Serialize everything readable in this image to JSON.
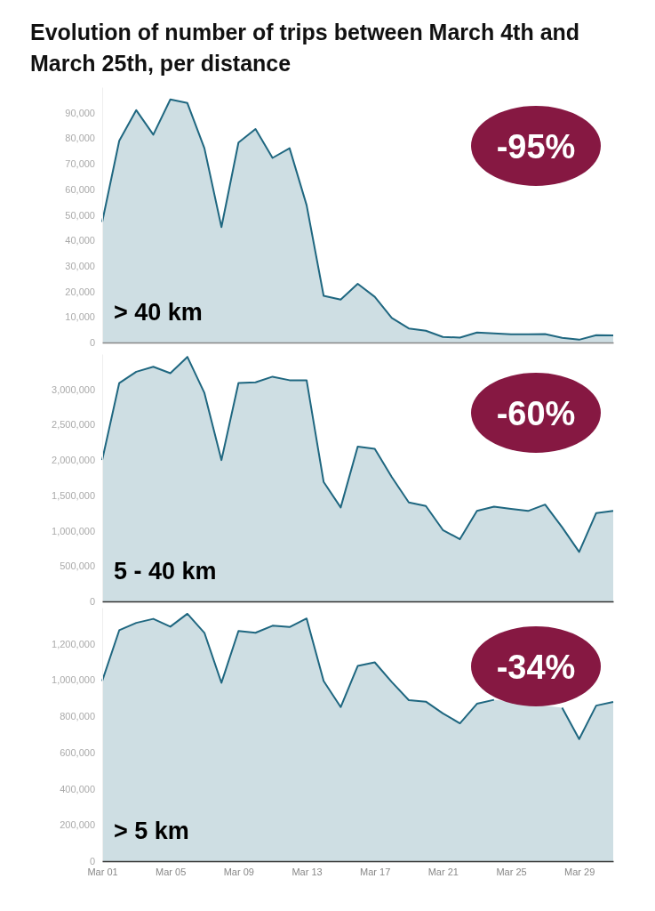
{
  "chart_data": [
    {
      "type": "area",
      "title": "Evolution of number of trips between March 4th and March 25th, per distance",
      "annotations": [
        "> 40 km",
        "-95%"
      ],
      "tick_labels": "y",
      "grid": false,
      "x": [
        "--03-01",
        "--03-02",
        "--03-03",
        "--03-04",
        "--03-05",
        "--03-06",
        "--03-07",
        "--03-08",
        "--03-09",
        "--03-10",
        "--03-11",
        "--03-12",
        "--03-13",
        "--03-14",
        "--03-15",
        "--03-16",
        "--03-17",
        "--03-18",
        "--03-19",
        "--03-20",
        "--03-21",
        "--03-22",
        "--03-23",
        "--03-24",
        "--03-25",
        "--03-26",
        "--03-27",
        "--03-28",
        "--03-29",
        "--03-30",
        "--03-31"
      ],
      "xlim": [
        "--03-01",
        "--03-31"
      ],
      "ylim": [
        0,
        100000
      ],
      "yticks": [
        {
          "value": 0,
          "label": "0"
        },
        {
          "value": 10000,
          "label": "10,000"
        },
        {
          "value": 20000,
          "label": "20,000"
        },
        {
          "value": 30000,
          "label": "30,000"
        },
        {
          "value": 40000,
          "label": "40,000"
        },
        {
          "value": 50000,
          "label": "50,000"
        },
        {
          "value": 60000,
          "label": "60,000"
        },
        {
          "value": 70000,
          "label": "70,000"
        },
        {
          "value": 80000,
          "label": "80,000"
        },
        {
          "value": 90000,
          "label": "90,000"
        }
      ],
      "series": [
        {
          "color": "#1f6780",
          "values": [
            47200,
            79000,
            91000,
            81400,
            95200,
            93800,
            76100,
            45200,
            78300,
            83600,
            72300,
            76100,
            53800,
            18300,
            16800,
            23000,
            17900,
            9600,
            5500,
            4600,
            2200,
            1900,
            3900,
            3600,
            3200,
            3200,
            3300,
            1800,
            1100,
            2900,
            2800
          ]
        }
      ]
    },
    {
      "type": "area",
      "annotations": [
        "5 - 40 km",
        "-60%"
      ],
      "tick_labels": "y",
      "grid": false,
      "x": [
        "--03-01",
        "--03-02",
        "--03-03",
        "--03-04",
        "--03-05",
        "--03-06",
        "--03-07",
        "--03-08",
        "--03-09",
        "--03-10",
        "--03-11",
        "--03-12",
        "--03-13",
        "--03-14",
        "--03-15",
        "--03-16",
        "--03-17",
        "--03-18",
        "--03-19",
        "--03-20",
        "--03-21",
        "--03-22",
        "--03-23",
        "--03-24",
        "--03-25",
        "--03-26",
        "--03-27",
        "--03-28",
        "--03-29",
        "--03-30",
        "--03-31"
      ],
      "xlim": [
        "--03-01",
        "--03-31"
      ],
      "ylim": [
        0,
        3500000
      ],
      "yticks": [
        {
          "value": 0,
          "label": "0"
        },
        {
          "value": 500000,
          "label": "500,000"
        },
        {
          "value": 1000000,
          "label": "1,000,000"
        },
        {
          "value": 1500000,
          "label": "1,500,000"
        },
        {
          "value": 2000000,
          "label": "2,000,000"
        },
        {
          "value": 2500000,
          "label": "2,500,000"
        },
        {
          "value": 3000000,
          "label": "3,000,000"
        }
      ],
      "series": [
        {
          "color": "#1f6780",
          "values": [
            2000000,
            3090000,
            3250000,
            3320000,
            3230000,
            3460000,
            2950000,
            2000000,
            3090000,
            3100000,
            3180000,
            3130000,
            3130000,
            1690000,
            1330000,
            2190000,
            2160000,
            1760000,
            1400000,
            1350000,
            1010000,
            880000,
            1280000,
            1340000,
            1310000,
            1280000,
            1370000,
            1050000,
            700000,
            1250000,
            1280000
          ]
        }
      ]
    },
    {
      "type": "area",
      "annotations": [
        "> 5 km",
        "-34%"
      ],
      "grid": false,
      "x": [
        "--03-01",
        "--03-02",
        "--03-03",
        "--03-04",
        "--03-05",
        "--03-06",
        "--03-07",
        "--03-08",
        "--03-09",
        "--03-10",
        "--03-11",
        "--03-12",
        "--03-13",
        "--03-14",
        "--03-15",
        "--03-16",
        "--03-17",
        "--03-18",
        "--03-19",
        "--03-20",
        "--03-21",
        "--03-22",
        "--03-23",
        "--03-24",
        "--03-25",
        "--03-26",
        "--03-27",
        "--03-28",
        "--03-29",
        "--03-30",
        "--03-31"
      ],
      "xlim": [
        "--03-01",
        "--03-31"
      ],
      "xticks": [
        {
          "value": "--03-01",
          "label": "Mar 01"
        },
        {
          "value": "--03-05",
          "label": "Mar 05"
        },
        {
          "value": "--03-09",
          "label": "Mar 09"
        },
        {
          "value": "--03-13",
          "label": "Mar 13"
        },
        {
          "value": "--03-17",
          "label": "Mar 17"
        },
        {
          "value": "--03-21",
          "label": "Mar 21"
        },
        {
          "value": "--03-25",
          "label": "Mar 25"
        },
        {
          "value": "--03-29",
          "label": "Mar 29"
        }
      ],
      "ylim": [
        0,
        1400000
      ],
      "yticks": [
        {
          "value": 0,
          "label": "0"
        },
        {
          "value": 200000,
          "label": "200,000"
        },
        {
          "value": 400000,
          "label": "400,000"
        },
        {
          "value": 600000,
          "label": "600,000"
        },
        {
          "value": 800000,
          "label": "800,000"
        },
        {
          "value": 1000000,
          "label": "1,000,000"
        },
        {
          "value": 1200000,
          "label": "1,200,000"
        }
      ],
      "series": [
        {
          "color": "#1f6780",
          "values": [
            995000,
            1275000,
            1316000,
            1338000,
            1295000,
            1366000,
            1261000,
            985000,
            1271000,
            1261000,
            1300000,
            1293000,
            1340000,
            995000,
            851000,
            1078000,
            1098000,
            989000,
            889000,
            881000,
            816000,
            761000,
            869000,
            891000,
            null,
            null,
            null,
            847000,
            674000,
            859000,
            879000
          ]
        }
      ]
    }
  ]
}
